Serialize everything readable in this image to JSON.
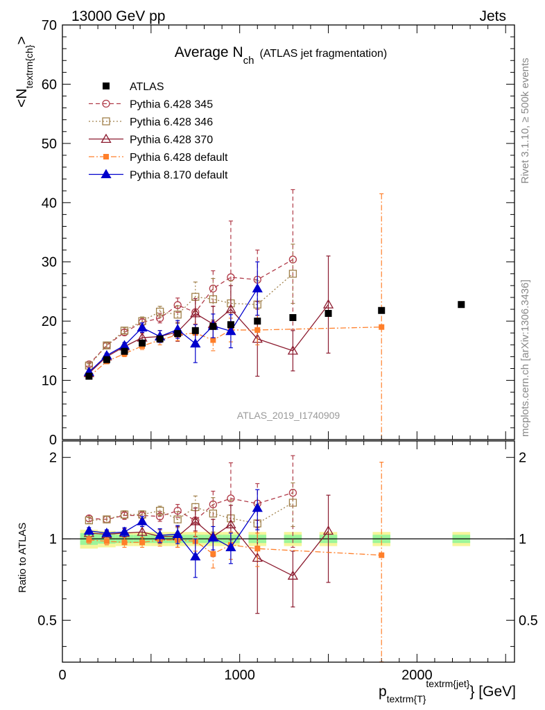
{
  "header": {
    "left": "13000 GeV pp",
    "right": "Jets"
  },
  "side_labels": {
    "rivet": "Rivet 3.1.10, ≥ 500k events",
    "mcplots": "mcplots.cern.ch [arXiv:1306.3436]"
  },
  "chart_data": {
    "type": "line",
    "title_main": "Average N",
    "title_sub": "ch",
    "title_note": "(ATLAS jet fragmentation)",
    "analysis_label": "ATLAS_2019_I1740909",
    "ylabel_main": "<N",
    "ylabel_sub": "textrm{ch}",
    "ylabel_end": ">",
    "ratio_ylabel": "Ratio to ATLAS",
    "xlabel_main": "p",
    "xlabel_sub": "textrm{T}",
    "xlabel_sup": "textrm{jet}",
    "xlabel_end": "} [GeV]",
    "xlim": [
      0,
      2550
    ],
    "ylim": [
      0,
      70
    ],
    "ratio_ylim": [
      0.35,
      2.3
    ],
    "x_ticks": [
      "0",
      "1000",
      "2000"
    ],
    "y_ticks": [
      "0",
      "10",
      "20",
      "30",
      "40",
      "50",
      "60",
      "70"
    ],
    "ratio_ticks": [
      "0.5",
      "1",
      "2"
    ],
    "reference": {
      "name": "ATLAS",
      "x": [
        150,
        250,
        350,
        450,
        550,
        650,
        750,
        850,
        950,
        1100,
        1300,
        1500,
        1800,
        2250
      ],
      "y": [
        10.7,
        13.5,
        14.9,
        16.3,
        17.0,
        17.9,
        18.4,
        19.1,
        19.4,
        20.0,
        20.6,
        21.3,
        21.8,
        22.8
      ],
      "ratio_band_outer": [
        0.08,
        0.07,
        0.06,
        0.06,
        0.06,
        0.06,
        0.06,
        0.06,
        0.06,
        0.06,
        0.06,
        0.06,
        0.06,
        0.06
      ],
      "ratio_band_inner": [
        0.05,
        0.04,
        0.035,
        0.035,
        0.035,
        0.035,
        0.035,
        0.035,
        0.035,
        0.035,
        0.035,
        0.035,
        0.035,
        0.035
      ]
    },
    "series": [
      {
        "name": "Pythia 6.428 345",
        "color": "#b03a48",
        "dash": "6,4",
        "marker": "circle-open",
        "x": [
          150,
          250,
          350,
          450,
          550,
          650,
          750,
          850,
          950,
          1100,
          1300
        ],
        "y": [
          12.7,
          15.9,
          18.1,
          19.8,
          20.5,
          22.7,
          21.5,
          25.5,
          27.4,
          27.0,
          30.4
        ],
        "err": [
          0.3,
          0.4,
          0.5,
          0.6,
          0.8,
          1.2,
          2.0,
          3.0,
          9.5,
          5.0,
          11.8
        ],
        "ratio": [
          1.19,
          1.18,
          1.22,
          1.22,
          1.21,
          1.27,
          1.17,
          1.34,
          1.41,
          1.35,
          1.48
        ],
        "ratio_err": [
          0.03,
          0.03,
          0.04,
          0.04,
          0.05,
          0.07,
          0.1,
          0.16,
          0.5,
          0.25,
          0.55
        ]
      },
      {
        "name": "Pythia 6.428 346",
        "color": "#a0804a",
        "dash": "2,3",
        "marker": "square-open",
        "x": [
          150,
          250,
          350,
          450,
          550,
          650,
          750,
          850,
          950,
          1100,
          1300
        ],
        "y": [
          12.5,
          15.9,
          18.4,
          20.0,
          21.6,
          21.1,
          24.1,
          23.7,
          23.0,
          22.8,
          28.0
        ],
        "err": [
          0.3,
          0.4,
          0.5,
          0.7,
          0.9,
          1.5,
          2.5,
          3.5,
          3.8,
          4.0,
          5.0
        ],
        "ratio": [
          1.17,
          1.18,
          1.23,
          1.23,
          1.27,
          1.18,
          1.31,
          1.24,
          1.19,
          1.14,
          1.36
        ],
        "ratio_err": [
          0.03,
          0.03,
          0.04,
          0.04,
          0.05,
          0.08,
          0.13,
          0.18,
          0.2,
          0.2,
          0.25
        ]
      },
      {
        "name": "Pythia 6.428 370",
        "color": "#8b1a2e",
        "dash": "",
        "marker": "triangle-open",
        "x": [
          150,
          250,
          350,
          450,
          550,
          650,
          750,
          850,
          950,
          1100,
          1300,
          1500
        ],
        "y": [
          11.2,
          14.0,
          15.7,
          17.2,
          17.4,
          18.2,
          21.3,
          19.5,
          22.0,
          17.0,
          15.0,
          22.8
        ],
        "err": [
          0.3,
          0.4,
          0.5,
          0.8,
          1.0,
          1.6,
          2.5,
          3.0,
          4.0,
          6.3,
          3.4,
          8.2
        ],
        "ratio": [
          1.05,
          1.04,
          1.05,
          1.06,
          1.02,
          1.02,
          1.16,
          1.02,
          1.13,
          0.85,
          0.73,
          1.07
        ],
        "ratio_err": [
          0.03,
          0.03,
          0.04,
          0.05,
          0.06,
          0.09,
          0.14,
          0.16,
          0.2,
          0.32,
          0.17,
          0.38
        ]
      },
      {
        "name": "Pythia 6.428 default",
        "color": "#ff7f2a",
        "dash": "8,3,2,3",
        "marker": "square-filled",
        "x": [
          150,
          250,
          350,
          450,
          550,
          650,
          750,
          850,
          950,
          1100,
          1800
        ],
        "y": [
          10.6,
          13.2,
          14.5,
          15.8,
          16.8,
          17.7,
          18.0,
          16.8,
          18.5,
          18.5,
          19.0
        ],
        "err": [
          0.3,
          0.4,
          0.5,
          0.6,
          0.8,
          1.0,
          1.5,
          1.8,
          2.0,
          2.5,
          22.5
        ],
        "ratio": [
          0.99,
          0.98,
          0.97,
          0.97,
          0.99,
          0.99,
          0.98,
          0.88,
          0.95,
          0.92,
          0.87
        ],
        "ratio_err": [
          0.03,
          0.03,
          0.04,
          0.04,
          0.05,
          0.06,
          0.08,
          0.1,
          0.11,
          0.13,
          1.05
        ]
      },
      {
        "name": "Pythia 8.170 default",
        "color": "#0000cc",
        "dash": "",
        "marker": "triangle-filled",
        "x": [
          150,
          250,
          350,
          450,
          550,
          650,
          750,
          850,
          950,
          1100
        ],
        "y": [
          11.4,
          14.2,
          15.9,
          18.9,
          17.4,
          18.6,
          16.2,
          19.2,
          18.3,
          25.5
        ],
        "err": [
          0.3,
          0.4,
          0.5,
          0.8,
          1.0,
          1.5,
          3.2,
          2.0,
          2.8,
          4.5
        ],
        "ratio": [
          1.07,
          1.05,
          1.06,
          1.16,
          1.03,
          1.04,
          0.86,
          1.01,
          0.93,
          1.3
        ],
        "ratio_err": [
          0.03,
          0.03,
          0.04,
          0.05,
          0.06,
          0.08,
          0.14,
          0.1,
          0.12,
          0.22
        ]
      }
    ]
  }
}
